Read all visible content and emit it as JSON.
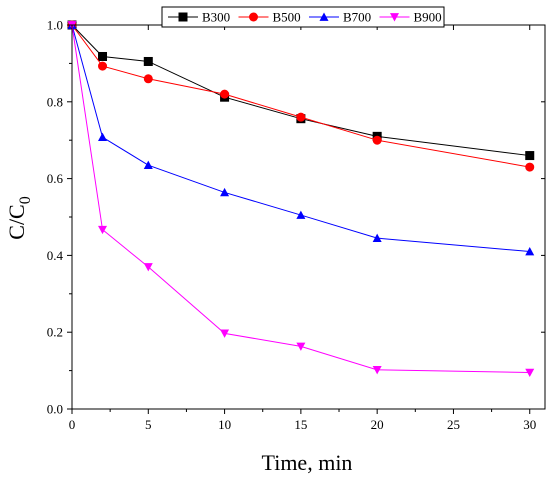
{
  "chart_data": {
    "type": "line",
    "xlabel": "Time, min",
    "ylabel_main": "C/C",
    "ylabel_sub": "0",
    "xlim": [
      0,
      31
    ],
    "ylim": [
      0,
      1.0
    ],
    "x_ticks": [
      0,
      5,
      10,
      15,
      20,
      25,
      30
    ],
    "y_ticks": [
      0.0,
      0.2,
      0.4,
      0.6,
      0.8,
      1.0
    ],
    "x_tick_labels": [
      "0",
      "5",
      "10",
      "15",
      "20",
      "25",
      "30"
    ],
    "y_tick_labels": [
      "0.0",
      "0.2",
      "0.4",
      "0.6",
      "0.8",
      "1.0"
    ],
    "grid": false,
    "legend_position": "top-right",
    "series": [
      {
        "name": "B300",
        "marker": "square",
        "color": "#000000",
        "x": [
          0,
          2,
          5,
          10,
          15,
          20,
          30
        ],
        "y": [
          1.0,
          0.918,
          0.905,
          0.812,
          0.756,
          0.71,
          0.66
        ]
      },
      {
        "name": "B500",
        "marker": "circle",
        "color": "#ff0000",
        "x": [
          0,
          2,
          5,
          10,
          15,
          20,
          30
        ],
        "y": [
          1.0,
          0.893,
          0.86,
          0.82,
          0.76,
          0.7,
          0.63
        ]
      },
      {
        "name": "B700",
        "marker": "triangle-up",
        "color": "#0000ff",
        "x": [
          0,
          2,
          5,
          10,
          15,
          20,
          30
        ],
        "y": [
          1.0,
          0.708,
          0.635,
          0.564,
          0.505,
          0.445,
          0.41
        ]
      },
      {
        "name": "B900",
        "marker": "triangle-down",
        "color": "#ff00ff",
        "x": [
          0,
          2,
          5,
          10,
          15,
          20,
          30
        ],
        "y": [
          1.0,
          0.467,
          0.37,
          0.197,
          0.163,
          0.102,
          0.095
        ]
      }
    ]
  }
}
